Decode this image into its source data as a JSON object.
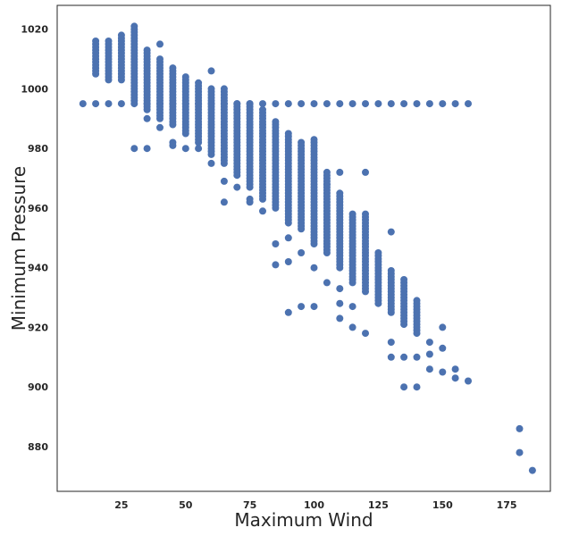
{
  "chart_data": {
    "type": "scatter",
    "title": "",
    "xlabel": "Maximum Wind",
    "ylabel": "Minimum Pressure",
    "xlim": [
      0,
      192
    ],
    "ylim": [
      865,
      1028
    ],
    "xticks": [
      25,
      50,
      75,
      100,
      125,
      150,
      175
    ],
    "yticks": [
      880,
      900,
      920,
      940,
      960,
      980,
      1000,
      1020
    ],
    "grid": false,
    "legend": "none",
    "marker_color": "#4c72b0",
    "column_ranges": [
      [
        15,
        1005,
        1016
      ],
      [
        20,
        1003,
        1016
      ],
      [
        25,
        1003,
        1018
      ],
      [
        30,
        996,
        1021
      ],
      [
        35,
        993,
        1013
      ],
      [
        40,
        990,
        1010
      ],
      [
        45,
        988,
        1007
      ],
      [
        50,
        985,
        1004
      ],
      [
        55,
        982,
        1002
      ],
      [
        60,
        978,
        1000
      ],
      [
        65,
        975,
        1000
      ],
      [
        70,
        971,
        995
      ],
      [
        75,
        967,
        995
      ],
      [
        80,
        963,
        993
      ],
      [
        85,
        960,
        989
      ],
      [
        90,
        955,
        985
      ],
      [
        95,
        953,
        982
      ],
      [
        100,
        948,
        983
      ],
      [
        105,
        945,
        972
      ],
      [
        110,
        940,
        965
      ],
      [
        115,
        935,
        958
      ],
      [
        120,
        932,
        958
      ],
      [
        125,
        928,
        945
      ],
      [
        130,
        925,
        939
      ],
      [
        135,
        921,
        936
      ],
      [
        140,
        918,
        929
      ]
    ],
    "horizontal_band": {
      "y": 995,
      "x": [
        10,
        15,
        20,
        25,
        30,
        35,
        40,
        45,
        50,
        55,
        60,
        65,
        70,
        75,
        80,
        85,
        90,
        95,
        100,
        105,
        110,
        115,
        120,
        125,
        130,
        135,
        140,
        145,
        150,
        155,
        160
      ]
    },
    "outliers": [
      [
        30,
        980
      ],
      [
        35,
        980
      ],
      [
        35,
        990
      ],
      [
        40,
        1015
      ],
      [
        40,
        987
      ],
      [
        45,
        982
      ],
      [
        45,
        981
      ],
      [
        50,
        980
      ],
      [
        55,
        980
      ],
      [
        60,
        1006
      ],
      [
        60,
        975
      ],
      [
        65,
        969
      ],
      [
        65,
        962
      ],
      [
        70,
        967
      ],
      [
        75,
        963
      ],
      [
        75,
        962
      ],
      [
        80,
        959
      ],
      [
        85,
        948
      ],
      [
        85,
        941
      ],
      [
        90,
        950
      ],
      [
        90,
        942
      ],
      [
        90,
        925
      ],
      [
        95,
        945
      ],
      [
        95,
        927
      ],
      [
        100,
        940
      ],
      [
        100,
        927
      ],
      [
        105,
        968
      ],
      [
        105,
        935
      ],
      [
        110,
        972
      ],
      [
        110,
        933
      ],
      [
        110,
        928
      ],
      [
        110,
        923
      ],
      [
        115,
        927
      ],
      [
        115,
        920
      ],
      [
        120,
        972
      ],
      [
        120,
        918
      ],
      [
        130,
        952
      ],
      [
        130,
        915
      ],
      [
        130,
        910
      ],
      [
        135,
        910
      ],
      [
        135,
        900
      ],
      [
        140,
        910
      ],
      [
        140,
        900
      ],
      [
        145,
        915
      ],
      [
        145,
        911
      ],
      [
        145,
        906
      ],
      [
        150,
        920
      ],
      [
        150,
        913
      ],
      [
        150,
        905
      ],
      [
        155,
        906
      ],
      [
        155,
        903
      ],
      [
        160,
        902
      ],
      [
        180,
        886
      ],
      [
        180,
        878
      ],
      [
        185,
        872
      ]
    ]
  }
}
